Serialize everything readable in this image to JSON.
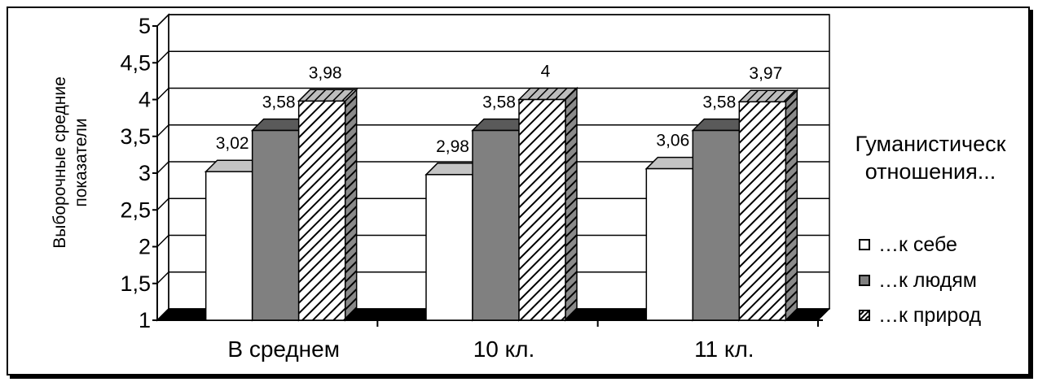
{
  "chart_data": {
    "type": "bar",
    "categories": [
      "В среднем",
      "10 кл.",
      "11 кл."
    ],
    "series": [
      {
        "name": "…к себе",
        "values": [
          3.02,
          2.98,
          3.06
        ],
        "labels": [
          "3,02",
          "2,98",
          "3,06"
        ]
      },
      {
        "name": "…к людям",
        "values": [
          3.58,
          3.58,
          3.58
        ],
        "labels": [
          "3,58",
          "3,58",
          "3,58"
        ]
      },
      {
        "name": "…к природ",
        "values": [
          3.98,
          4.0,
          3.97
        ],
        "labels": [
          "3,98",
          "4",
          "3,97"
        ]
      }
    ],
    "ylabel": "Выборочные средние показатели",
    "ylabel_lines": [
      "Выборочные средние",
      "показатели"
    ],
    "ylim": [
      1,
      5
    ],
    "yticks": [
      "1",
      "1,5",
      "2",
      "2,5",
      "3",
      "3,5",
      "4",
      "4,5",
      "5"
    ],
    "legend_title": [
      "Гуманистическ",
      "отношения..."
    ],
    "legend_placement": "right",
    "grid": true,
    "colors": {
      "series1": "#ffffff",
      "series2": "#808080",
      "series3": "hatched"
    }
  }
}
